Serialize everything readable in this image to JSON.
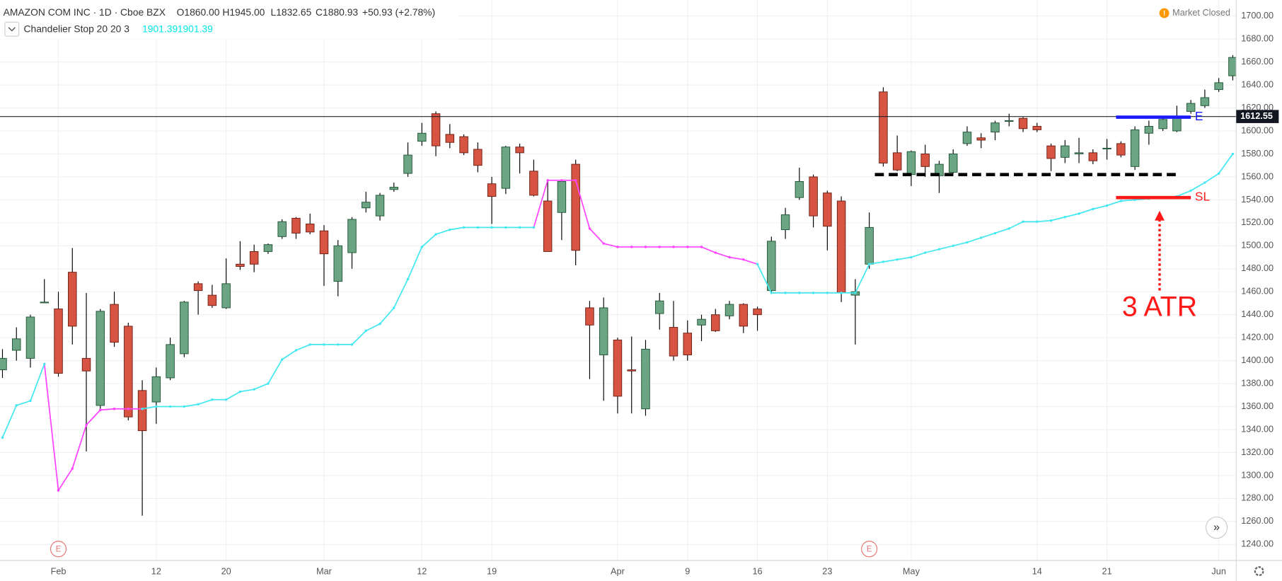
{
  "chart_data": {
    "type": "candlestick",
    "title": "AMAZON COM INC · 1D · Cboe BZX",
    "ohlc_text": [
      "O1860.00",
      "H1945.00",
      "L1832.65",
      "C1880.93"
    ],
    "change": "+50.93 (+2.78%)",
    "indicator": {
      "name": "Chandelier Stop 20 20 3",
      "values": [
        1901.39,
        1901.39
      ],
      "color": "#00e5e5"
    },
    "market_status": "Market Closed",
    "up_color": "#6ba583",
    "down_color": "#d75442",
    "border_color": "#225437",
    "categories": [
      null,
      null,
      null,
      null,
      "Feb",
      null,
      null,
      null,
      null,
      null,
      null,
      "12",
      null,
      null,
      null,
      null,
      "20",
      null,
      null,
      null,
      null,
      null,
      null,
      "Mar",
      null,
      null,
      null,
      null,
      null,
      null,
      "12",
      null,
      null,
      null,
      null,
      "19",
      null,
      null,
      null,
      null,
      null,
      null,
      null,
      null,
      "Apr",
      null,
      null,
      null,
      null,
      "9",
      null,
      null,
      null,
      null,
      "16",
      null,
      null,
      null,
      null,
      "23",
      null,
      null,
      null,
      null,
      null,
      "May",
      null,
      null,
      null,
      null,
      null,
      null,
      null,
      null,
      "14",
      null,
      null,
      null,
      null,
      "21",
      null,
      null,
      null,
      null,
      null,
      null,
      null,
      "Jun",
      null
    ],
    "ohlc": [
      [
        1392,
        1410,
        1385,
        1402
      ],
      [
        1409,
        1429,
        1400,
        1419
      ],
      [
        1402,
        1440,
        1394,
        1438
      ],
      [
        1451,
        1471,
        1450,
        1451
      ],
      [
        1445,
        1460,
        1386,
        1389
      ],
      [
        1477,
        1498,
        1414,
        1430
      ],
      [
        1402,
        1459,
        1321,
        1391
      ],
      [
        1361,
        1445,
        1358,
        1443
      ],
      [
        1449,
        1460,
        1412,
        1416
      ],
      [
        1430,
        1433,
        1348,
        1351
      ],
      [
        1374,
        1383,
        1265,
        1339
      ],
      [
        1364,
        1394,
        1345,
        1386
      ],
      [
        1385,
        1420,
        1383,
        1414
      ],
      [
        1406,
        1452,
        1403,
        1451
      ],
      [
        1467,
        1469,
        1440,
        1461
      ],
      [
        1457,
        1466,
        1446,
        1448
      ],
      [
        1446,
        1489,
        1445,
        1467
      ],
      [
        1484,
        1504,
        1479,
        1482
      ],
      [
        1495,
        1501,
        1477,
        1484
      ],
      [
        1495,
        1502,
        1493,
        1501
      ],
      [
        1508,
        1523,
        1506,
        1521
      ],
      [
        1524,
        1525,
        1506,
        1511
      ],
      [
        1519,
        1528,
        1510,
        1512
      ],
      [
        1513,
        1518,
        1465,
        1493
      ],
      [
        1469,
        1505,
        1456,
        1500
      ],
      [
        1494,
        1525,
        1480,
        1523
      ],
      [
        1533,
        1547,
        1529,
        1538
      ],
      [
        1526,
        1546,
        1522,
        1544
      ],
      [
        1549,
        1555,
        1547,
        1551
      ],
      [
        1563,
        1590,
        1560,
        1579
      ],
      [
        1591,
        1607,
        1587,
        1598
      ],
      [
        1615,
        1617,
        1578,
        1587
      ],
      [
        1597,
        1606,
        1585,
        1590
      ],
      [
        1595,
        1597,
        1579,
        1581
      ],
      [
        1584,
        1590,
        1564,
        1570
      ],
      [
        1554,
        1560,
        1519,
        1543
      ],
      [
        1550,
        1587,
        1545,
        1586
      ],
      [
        1586,
        1589,
        1563,
        1581
      ],
      [
        1565,
        1575,
        1543,
        1544
      ],
      [
        1539,
        1558,
        1495,
        1495
      ],
      [
        1529,
        1557,
        1505,
        1556
      ],
      [
        1571,
        1575,
        1483,
        1496
      ],
      [
        1446,
        1452,
        1384,
        1431
      ],
      [
        1405,
        1455,
        1365,
        1446
      ],
      [
        1418,
        1420,
        1354,
        1369
      ],
      [
        1392,
        1421,
        1354,
        1391
      ],
      [
        1358,
        1418,
        1352,
        1410
      ],
      [
        1441,
        1459,
        1427,
        1452
      ],
      [
        1429,
        1452,
        1400,
        1404
      ],
      [
        1424,
        1435,
        1400,
        1405
      ],
      [
        1431,
        1440,
        1417,
        1436
      ],
      [
        1440,
        1445,
        1425,
        1426
      ],
      [
        1439,
        1452,
        1436,
        1449
      ],
      [
        1449,
        1450,
        1424,
        1430
      ],
      [
        1445,
        1447,
        1426,
        1440
      ],
      [
        1461,
        1508,
        1459,
        1504
      ],
      [
        1514,
        1533,
        1506,
        1527
      ],
      [
        1542,
        1568,
        1540,
        1556
      ],
      [
        1560,
        1562,
        1516,
        1526
      ],
      [
        1546,
        1548,
        1496,
        1517
      ],
      [
        1539,
        1543,
        1451,
        1459
      ],
      [
        1457,
        1471,
        1414,
        1460
      ],
      [
        1484,
        1529,
        1480,
        1516
      ],
      [
        1634,
        1638,
        1569,
        1572
      ],
      [
        1581,
        1596,
        1565,
        1566
      ],
      [
        1562,
        1583,
        1552,
        1582
      ],
      [
        1580,
        1588,
        1560,
        1569
      ],
      [
        1561,
        1574,
        1546,
        1571
      ],
      [
        1564,
        1584,
        1563,
        1580
      ],
      [
        1589,
        1604,
        1587,
        1599
      ],
      [
        1594,
        1598,
        1585,
        1592
      ],
      [
        1599,
        1609,
        1592,
        1607
      ],
      [
        1609,
        1615,
        1604,
        1609
      ],
      [
        1611,
        1612,
        1599,
        1602
      ],
      [
        1604,
        1607,
        1599,
        1601
      ],
      [
        1587,
        1589,
        1565,
        1576
      ],
      [
        1577,
        1592,
        1572,
        1587
      ],
      [
        1580,
        1594,
        1572,
        1581
      ],
      [
        1581,
        1584,
        1571,
        1574
      ],
      [
        1585,
        1593,
        1575,
        1585
      ],
      [
        1589,
        1591,
        1577,
        1579
      ],
      [
        1569,
        1604,
        1566,
        1601
      ],
      [
        1598,
        1609,
        1588,
        1604
      ],
      [
        1602,
        1611,
        1600,
        1610
      ],
      [
        1600,
        1622,
        1599,
        1612
      ],
      [
        1617,
        1627,
        1615,
        1624
      ],
      [
        1622,
        1636,
        1620,
        1629
      ],
      [
        1636,
        1646,
        1634,
        1642
      ],
      [
        1648,
        1666,
        1644,
        1664
      ]
    ],
    "series": [
      {
        "color": "#ff44ff",
        "values": [
          null,
          null,
          null,
          1397,
          1287,
          1306,
          1344,
          1357,
          1358,
          1358,
          1358,
          null,
          null,
          null,
          null,
          null,
          null,
          null,
          null,
          null,
          null,
          null,
          null,
          null,
          null,
          null,
          null,
          null,
          null,
          null,
          null,
          null,
          null,
          null,
          null,
          null,
          null,
          null,
          1516,
          1557,
          1557,
          1557,
          1515,
          1502,
          1499,
          1499,
          1499,
          1499,
          1499,
          1499,
          1499,
          1494,
          1490,
          1488,
          1484,
          null,
          null,
          null,
          null,
          null,
          null,
          null,
          null,
          null,
          null,
          null,
          null,
          null,
          null,
          null,
          null,
          null,
          null,
          null,
          null,
          null,
          null,
          null,
          null,
          null,
          null,
          null,
          null,
          null,
          null,
          null,
          null,
          null,
          null
        ]
      },
      {
        "color": "#44e8f0",
        "values": [
          1333,
          1361,
          1365,
          1397,
          null,
          null,
          null,
          null,
          null,
          null,
          1358,
          1360,
          1360,
          1360,
          1362,
          1366,
          1366,
          1373,
          1375,
          1380,
          1401,
          1409,
          1414,
          1414,
          1414,
          1414,
          1426,
          1432,
          1446,
          1471,
          1499,
          1510,
          1514,
          1516,
          1516,
          1516,
          1516,
          1516,
          1516,
          null,
          null,
          null,
          null,
          null,
          null,
          null,
          null,
          null,
          null,
          null,
          null,
          null,
          null,
          null,
          1484,
          1459,
          1459,
          1459,
          1459,
          1459,
          1459,
          1459,
          1484,
          1486,
          1488,
          1490,
          1494,
          1497,
          1500,
          1503,
          1507,
          1511,
          1515,
          1521,
          1521,
          1522,
          1525,
          1528,
          1532,
          1535,
          1539,
          1540,
          1541,
          1542,
          1543,
          1548,
          1555,
          1563,
          1580
        ]
      }
    ],
    "ylim": [
      1226,
      1714
    ],
    "yticks": [
      {
        "value": 1240,
        "label": "1240.00"
      },
      {
        "value": 1260,
        "label": "1260.00"
      },
      {
        "value": 1280,
        "label": "1280.00"
      },
      {
        "value": 1300,
        "label": "1300.00"
      },
      {
        "value": 1320,
        "label": "1320.00"
      },
      {
        "value": 1340,
        "label": "1340.00"
      },
      {
        "value": 1360,
        "label": "1360.00"
      },
      {
        "value": 1380,
        "label": "1380.00"
      },
      {
        "value": 1400,
        "label": "1400.00"
      },
      {
        "value": 1420,
        "label": "1420.00"
      },
      {
        "value": 1440,
        "label": "1440.00"
      },
      {
        "value": 1460,
        "label": "1460.00"
      },
      {
        "value": 1480,
        "label": "1480.00"
      },
      {
        "value": 1500,
        "label": "1500.00"
      },
      {
        "value": 1520,
        "label": "1520.00"
      },
      {
        "value": 1540,
        "label": "1540.00"
      },
      {
        "value": 1560,
        "label": "1560.00"
      },
      {
        "value": 1580,
        "label": "1580.00"
      },
      {
        "value": 1600,
        "label": "1600.00"
      },
      {
        "value": 1620,
        "label": "1620.00"
      },
      {
        "value": 1640,
        "label": "1640.00"
      },
      {
        "value": 1660,
        "label": "1660.00"
      },
      {
        "value": 1680,
        "label": "1680.00"
      },
      {
        "value": 1700,
        "label": "1700.00"
      }
    ],
    "grid": true,
    "last_price": 1612.55,
    "annotations": {
      "entry": {
        "value": 1612,
        "label": "E",
        "color": "#1a1aff"
      },
      "stop": {
        "value": 1542,
        "label": "SL",
        "color": "#ff1a1a"
      },
      "support": {
        "value": 1562,
        "color": "#000000"
      },
      "atr_label": "3 ATR"
    },
    "events": [
      "E",
      "E"
    ]
  }
}
